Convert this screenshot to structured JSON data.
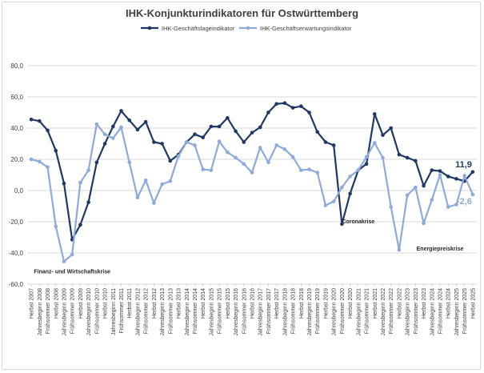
{
  "chart_data": {
    "type": "line",
    "title": "IHK-Konjunkturindikatoren für Ostwürttemberg",
    "xlabel": "",
    "ylabel": "",
    "ylim": [
      -60,
      80
    ],
    "yticks": [
      "-60,0",
      "-40,0",
      "-20,0",
      "0,0",
      "20,0",
      "40,0",
      "60,0",
      "80,0"
    ],
    "grid": true,
    "legend_position": "top",
    "categories": [
      "Herbst 2007",
      "Jahresbeginn 2008",
      "Frühsommer 2008",
      "Herbst 2008",
      "Jahresbeginn 2009",
      "Frühsommer 2009",
      "Herbst 2009",
      "Jahresbeginn 2010",
      "Frühsommer 2010",
      "Herbst 2010",
      "Jahresbeginn 2011",
      "Frühsommer 2011",
      "Herbst 2011",
      "Jahresbeginn 2012",
      "Frühsommer 2012",
      "Herbst 2012",
      "Jahresbeginn 2013",
      "Frühsommer 2013",
      "Herbst 2013",
      "Jahresbeginn 2014",
      "Frühsommer 2014",
      "Herbst 2014",
      "Jahresbeginn 2015",
      "Frühsommer 2015",
      "Herbst 2015",
      "Jahresbeginn 2016",
      "Frühsommer 2016",
      "Herbst 2016",
      "Jahresbeginn 2017",
      "Frühsommer 2017",
      "Herbst 2017",
      "Jahresbeginn 2018",
      "Frühsommer 2018",
      "Herbst 2018",
      "Jahresbeginn 2019",
      "Frühsommer 2019",
      "Herbst 2019",
      "Jahresbeginn 2020",
      "Frühsommer 2020",
      "Herbst 2020",
      "Jahresbeginn 2021",
      "Frühsommer 2021",
      "Herbst 2021",
      "Jahresbeginn 2022",
      "Frühsommer 2022",
      "Herbst 2022",
      "Jahresbeginn 2023",
      "Frühsommer 2023",
      "Herbst 2023",
      "Jahresbeginn 2024",
      "Frühsommer 2024",
      "Herbst 2024",
      "Jahresbeginn 2025",
      "Frühsommer 2025",
      "Herbst 2025"
    ],
    "series": [
      {
        "name": "IHK-Geschäftslageindikator",
        "color": "#1f3864",
        "values": [
          45.5,
          44.5,
          38.5,
          25.5,
          4.5,
          -31.5,
          -22,
          -7.5,
          18,
          30,
          41,
          51,
          45,
          39,
          44,
          31,
          30,
          19,
          23,
          31,
          36,
          34,
          41,
          41,
          46.5,
          38,
          31,
          37,
          40.5,
          50,
          55.5,
          56,
          53,
          54,
          50,
          37.5,
          31,
          29,
          -21.5,
          -2,
          13,
          17,
          49,
          35.5,
          40,
          23,
          21,
          19,
          3,
          13,
          12.5,
          9,
          7.5,
          6,
          11.9
        ]
      },
      {
        "name": "IHK-Geschäftserwartungsindikator",
        "color": "#8eaadb",
        "values": [
          20,
          18.5,
          15,
          -23,
          -45.5,
          -41,
          5,
          13,
          42.5,
          36,
          33.5,
          40.5,
          18,
          -4.5,
          6.5,
          -8,
          4,
          6,
          22,
          31,
          29,
          13.5,
          13,
          31.5,
          24.5,
          21,
          17,
          11.5,
          27.5,
          18,
          29,
          26.5,
          21.5,
          13,
          13.5,
          11.5,
          -9.5,
          -7,
          2,
          9,
          13,
          21.5,
          30.5,
          21,
          -10.5,
          -38,
          -3,
          2,
          -21,
          -6,
          10,
          -10.5,
          -9,
          9.5,
          -2.6
        ]
      }
    ],
    "end_labels": [
      "11,9",
      "-2,6"
    ],
    "annotations": [
      {
        "text": "Finanz- und Wirtschaftskrise",
        "x_index": 5,
        "y": -53
      },
      {
        "text": "Coronakrise",
        "x_index": 40,
        "y": -21
      },
      {
        "text": "Energiepreiskrise",
        "x_index": 50,
        "y": -38.5
      }
    ]
  }
}
